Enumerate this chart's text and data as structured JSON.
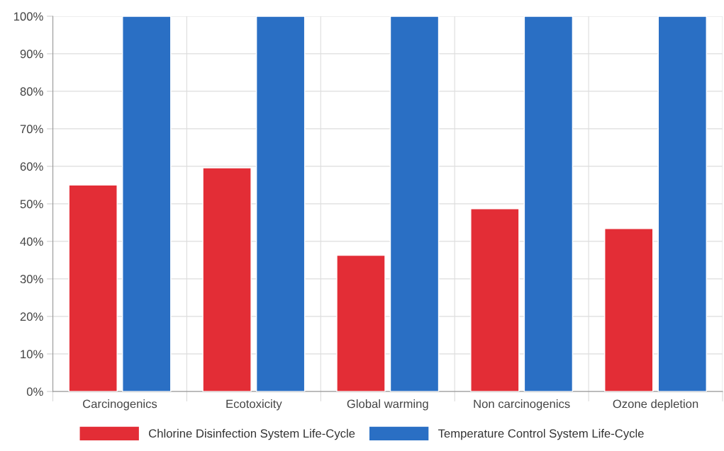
{
  "chart_data": {
    "type": "bar",
    "categories": [
      "Carcinogenics",
      "Ecotoxicity",
      "Global warming",
      "Non carcinogenics",
      "Ozone depletion"
    ],
    "series": [
      {
        "name": "Chlorine Disinfection System Life-Cycle",
        "color": "#e32d36",
        "values": [
          55,
          59.6,
          36.3,
          48.7,
          43.4
        ]
      },
      {
        "name": "Temperature Control System Life-Cycle",
        "color": "#2a6fc4",
        "values": [
          100,
          100,
          100,
          100,
          100
        ]
      }
    ],
    "ylim": [
      0,
      100
    ],
    "yticks": [
      {
        "value": 0,
        "label": "0%"
      },
      {
        "value": 10,
        "label": "10%"
      },
      {
        "value": 20,
        "label": "20%"
      },
      {
        "value": 30,
        "label": "30%"
      },
      {
        "value": 40,
        "label": "40%"
      },
      {
        "value": 50,
        "label": "50%"
      },
      {
        "value": 60,
        "label": "60%"
      },
      {
        "value": 70,
        "label": "70%"
      },
      {
        "value": 80,
        "label": "80%"
      },
      {
        "value": 90,
        "label": "90%"
      },
      {
        "value": 100,
        "label": "100%"
      }
    ],
    "grid": true,
    "legend": "bottom"
  }
}
